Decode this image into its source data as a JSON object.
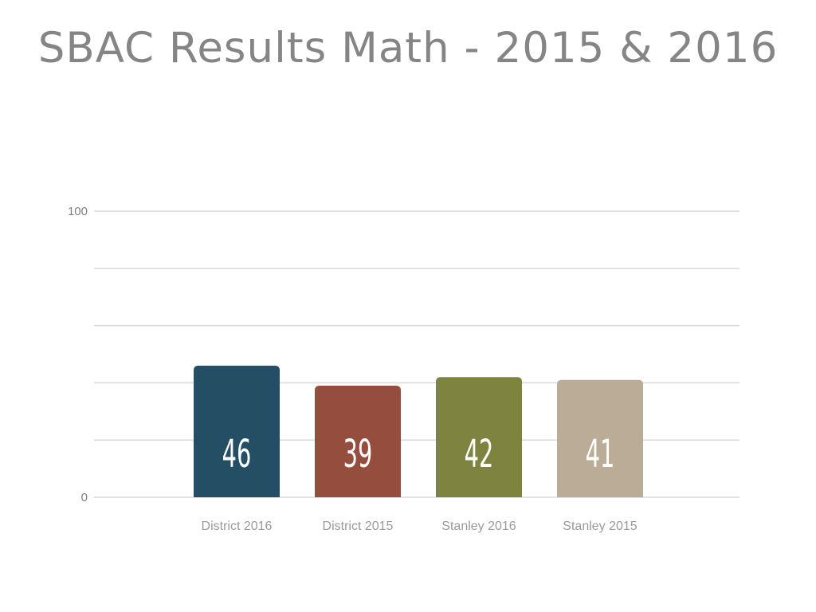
{
  "title": "SBAC Results Math - 2015 & 2016",
  "chart_data": {
    "type": "bar",
    "title": "SBAC Results Math - 2015 & 2016",
    "categories": [
      "District 2016",
      "District 2015",
      "Stanley 2016",
      "Stanley 2015"
    ],
    "values": [
      46,
      39,
      42,
      41
    ],
    "value_labels": [
      "46",
      "39",
      "42",
      "41"
    ],
    "colors": [
      "#234e63",
      "#954e3e",
      "#7e833f",
      "#bbac97"
    ],
    "ylim": [
      0,
      100
    ],
    "y_tick_labels": [
      "0",
      "100"
    ],
    "xlabel": "",
    "ylabel": "",
    "grid": true
  }
}
